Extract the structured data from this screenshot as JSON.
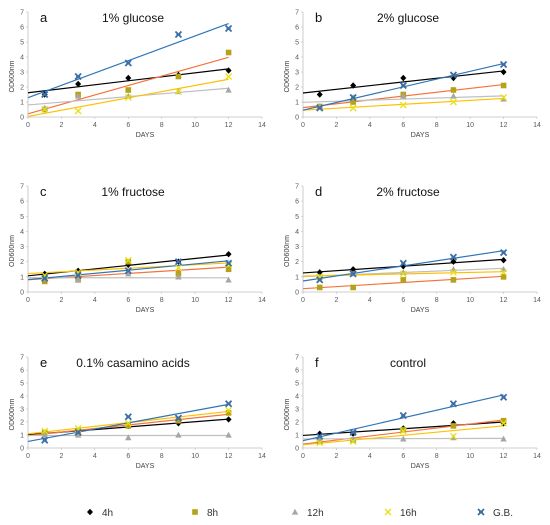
{
  "legend": [
    {
      "name": "4h",
      "color": "#000000",
      "marker": "diamond"
    },
    {
      "name": "8h",
      "color": "#b5a218",
      "marker": "square"
    },
    {
      "name": "12h",
      "color": "#a6a6a6",
      "marker": "triangle"
    },
    {
      "name": "16h",
      "color": "#e8e010",
      "marker": "x"
    },
    {
      "name": "G.B.",
      "color": "#3c6ea8",
      "marker": "star"
    }
  ],
  "chart_data": [
    {
      "type": "scatter",
      "panel_letter": "a",
      "title": "1% glucose",
      "xlabel": "DAYS",
      "ylabel": "OD600nm",
      "xlim": [
        0,
        14
      ],
      "ylim": [
        0,
        7
      ],
      "xticks": [
        0,
        2,
        4,
        6,
        8,
        10,
        12,
        14
      ],
      "yticks": [
        0,
        1,
        2,
        3,
        4,
        5,
        6,
        7
      ],
      "x": [
        1,
        3,
        6,
        9,
        12
      ],
      "series": [
        {
          "name": "4h",
          "values": [
            1.5,
            2.2,
            2.6,
            2.8,
            3.1
          ],
          "trend_color": "#000000"
        },
        {
          "name": "8h",
          "values": [
            0.5,
            1.5,
            1.8,
            2.7,
            4.3
          ],
          "trend_color": "#f4743c"
        },
        {
          "name": "12h",
          "values": [
            0.6,
            1.4,
            1.4,
            1.7,
            1.8
          ],
          "trend_color": "#bfbfbf"
        },
        {
          "name": "16h",
          "values": [
            0.5,
            0.4,
            1.3,
            1.7,
            2.7
          ],
          "trend_color": "#ffc000"
        },
        {
          "name": "G.B.",
          "values": [
            1.5,
            2.7,
            3.6,
            5.5,
            5.9
          ],
          "trend_color": "#2e75b6"
        }
      ]
    },
    {
      "type": "scatter",
      "panel_letter": "b",
      "title": "2% glucose",
      "xlabel": "DAYS",
      "ylabel": "OD600nm",
      "xlim": [
        0,
        14
      ],
      "ylim": [
        0,
        7
      ],
      "xticks": [
        0,
        2,
        4,
        6,
        8,
        10,
        12,
        14
      ],
      "yticks": [
        0,
        1,
        2,
        3,
        4,
        5,
        6,
        7
      ],
      "x": [
        1,
        3,
        6,
        9,
        12
      ],
      "series": [
        {
          "name": "4h",
          "values": [
            1.5,
            2.1,
            2.6,
            2.6,
            3.0
          ],
          "trend_color": "#000000"
        },
        {
          "name": "8h",
          "values": [
            0.7,
            1.0,
            1.5,
            1.8,
            2.1
          ],
          "trend_color": "#f4743c"
        },
        {
          "name": "12h",
          "values": [
            0.7,
            1.3,
            1.4,
            1.4,
            1.2
          ],
          "trend_color": "#bfbfbf"
        },
        {
          "name": "16h",
          "values": [
            0.6,
            0.6,
            0.8,
            1.0,
            1.3
          ],
          "trend_color": "#ffc000"
        },
        {
          "name": "G.B.",
          "values": [
            0.6,
            1.3,
            2.1,
            2.8,
            3.5
          ],
          "trend_color": "#2e75b6"
        }
      ]
    },
    {
      "type": "scatter",
      "panel_letter": "c",
      "title": "1% fructose",
      "xlabel": "DAYS",
      "ylabel": "OD600nm",
      "xlim": [
        0,
        14
      ],
      "ylim": [
        0,
        7
      ],
      "xticks": [
        0,
        2,
        4,
        6,
        8,
        10,
        12,
        14
      ],
      "yticks": [
        0,
        1,
        2,
        3,
        4,
        5,
        6,
        7
      ],
      "x": [
        1,
        3,
        6,
        9,
        12
      ],
      "series": [
        {
          "name": "4h",
          "values": [
            1.2,
            1.4,
            1.8,
            2.0,
            2.5
          ],
          "trend_color": "#000000"
        },
        {
          "name": "8h",
          "values": [
            0.7,
            0.8,
            2.0,
            1.2,
            1.5
          ],
          "trend_color": "#f4743c"
        },
        {
          "name": "12h",
          "values": [
            0.9,
            0.8,
            1.2,
            1.0,
            0.8
          ],
          "trend_color": "#bfbfbf"
        },
        {
          "name": "16h",
          "values": [
            1.1,
            1.3,
            2.1,
            1.6,
            1.8
          ],
          "trend_color": "#ffc000"
        },
        {
          "name": "G.B.",
          "values": [
            0.9,
            1.1,
            1.4,
            2.0,
            1.9
          ],
          "trend_color": "#2e75b6"
        }
      ]
    },
    {
      "type": "scatter",
      "panel_letter": "d",
      "title": "2% fructose",
      "xlabel": "DAYS",
      "ylabel": "OD600nm",
      "xlim": [
        0,
        14
      ],
      "ylim": [
        0,
        7
      ],
      "xticks": [
        0,
        2,
        4,
        6,
        8,
        10,
        12,
        14
      ],
      "yticks": [
        0,
        1,
        2,
        3,
        4,
        5,
        6,
        7
      ],
      "x": [
        1,
        3,
        6,
        9,
        12
      ],
      "series": [
        {
          "name": "4h",
          "values": [
            1.3,
            1.5,
            1.7,
            2.0,
            2.1
          ],
          "trend_color": "#000000"
        },
        {
          "name": "8h",
          "values": [
            0.3,
            0.3,
            0.8,
            0.8,
            1.0
          ],
          "trend_color": "#f4743c"
        },
        {
          "name": "12h",
          "values": [
            1.0,
            1.2,
            1.3,
            1.5,
            1.5
          ],
          "trend_color": "#bfbfbf"
        },
        {
          "name": "16h",
          "values": [
            1.0,
            1.2,
            1.2,
            1.3,
            1.3
          ],
          "trend_color": "#ffc000"
        },
        {
          "name": "G.B.",
          "values": [
            0.8,
            1.2,
            1.9,
            2.3,
            2.6
          ],
          "trend_color": "#2e75b6"
        }
      ]
    },
    {
      "type": "scatter",
      "panel_letter": "e",
      "title": "0.1% casamino acids",
      "xlabel": "DAYS",
      "ylabel": "OD600nm",
      "xlim": [
        0,
        14
      ],
      "ylim": [
        0,
        7
      ],
      "xticks": [
        0,
        2,
        4,
        6,
        8,
        10,
        12,
        14
      ],
      "yticks": [
        0,
        1,
        2,
        3,
        4,
        5,
        6,
        7
      ],
      "x": [
        1,
        3,
        6,
        9,
        12
      ],
      "series": [
        {
          "name": "4h",
          "values": [
            1.1,
            1.3,
            1.7,
            1.9,
            2.2
          ],
          "trend_color": "#000000"
        },
        {
          "name": "8h",
          "values": [
            1.2,
            1.3,
            1.7,
            2.1,
            2.7
          ],
          "trend_color": "#f4743c"
        },
        {
          "name": "12h",
          "values": [
            1.0,
            1.0,
            0.8,
            1.0,
            1.0
          ],
          "trend_color": "#bfbfbf"
        },
        {
          "name": "16h",
          "values": [
            1.3,
            1.5,
            1.9,
            2.3,
            2.9
          ],
          "trend_color": "#ffc000"
        },
        {
          "name": "G.B.",
          "values": [
            0.6,
            1.2,
            2.4,
            2.3,
            3.4
          ],
          "trend_color": "#2e75b6"
        }
      ]
    },
    {
      "type": "scatter",
      "panel_letter": "f",
      "title": "control",
      "xlabel": "DAYS",
      "ylabel": "OD600nm",
      "xlim": [
        0,
        14
      ],
      "ylim": [
        0,
        7
      ],
      "xticks": [
        0,
        2,
        4,
        6,
        8,
        10,
        12,
        14
      ],
      "yticks": [
        0,
        1,
        2,
        3,
        4,
        5,
        6,
        7
      ],
      "x": [
        1,
        3,
        6,
        9,
        12
      ],
      "series": [
        {
          "name": "4h",
          "values": [
            1.1,
            1.1,
            1.5,
            1.9,
            1.9
          ],
          "trend_color": "#000000"
        },
        {
          "name": "8h",
          "values": [
            0.5,
            0.6,
            1.4,
            1.7,
            2.1
          ],
          "trend_color": "#f4743c"
        },
        {
          "name": "12h",
          "values": [
            0.7,
            0.7,
            0.7,
            0.8,
            0.7
          ],
          "trend_color": "#bfbfbf"
        },
        {
          "name": "16h",
          "values": [
            0.4,
            0.5,
            1.3,
            0.9,
            1.9
          ],
          "trend_color": "#ffc000"
        },
        {
          "name": "G.B.",
          "values": [
            0.9,
            1.2,
            2.5,
            3.4,
            3.9
          ],
          "trend_color": "#2e75b6"
        }
      ]
    }
  ]
}
